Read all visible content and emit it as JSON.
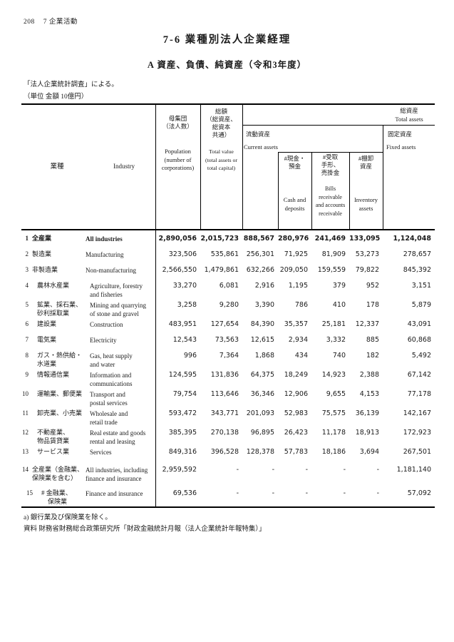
{
  "page": {
    "page_number": "208",
    "chapter": "7 企業活動",
    "title": "7-6 業種別法人企業経理",
    "subtitle": "A 資産、負債、純資産（令和3年度）",
    "note1": "「法人企業統計調査」による。",
    "note2": "（単位 金額 10億円）",
    "footnote": "a) 銀行業及び保険業を除く。",
    "source": "資料 財務省財務総合政策研究所「財政金融統計月報（法人企業統計年報特集）」"
  },
  "table": {
    "head": {
      "industry_ja": "業種",
      "industry_en": "Industry",
      "population_ja": "母集団\n（法人数）",
      "population_en": "Population\n(number of\ncorporations)",
      "total_ja": "総額\n（総資産、\n総資本\n共通）",
      "total_en": "Total value\n(total assets or\ntotal capital)",
      "total_assets_ja": "総資産",
      "total_assets_en": "Total assets",
      "current_ja": "流動資産",
      "current_en": "Current assets",
      "fixed_ja": "固定資産",
      "fixed_en": "Fixed assets",
      "cash_ja": "#現金・\n預金",
      "cash_en": "Cash and\ndeposits",
      "bills_ja": "#受取\n手形、\n売掛金",
      "bills_en": "Bills\nreceivable\nand accounts\nreceivable",
      "inventory_ja": "#棚卸\n資産",
      "inventory_en": "Inventory\nassets"
    },
    "rows": [
      {
        "num": "1",
        "ja": "全産業",
        "en": "All industries",
        "bold": true,
        "indent": false,
        "values": [
          "2,890,056",
          "2,015,723",
          "888,567",
          "280,976",
          "241,469",
          "133,095",
          "1,124,048"
        ]
      },
      {
        "num": "2",
        "ja": "製造業",
        "en": "Manufacturing",
        "bold": false,
        "indent": false,
        "values": [
          "323,506",
          "535,861",
          "256,301",
          "71,925",
          "81,909",
          "53,273",
          "278,657"
        ]
      },
      {
        "num": "3",
        "ja": "非製造業",
        "en": "Non-manufacturing",
        "bold": false,
        "indent": false,
        "values": [
          "2,566,550",
          "1,479,861",
          "632,266",
          "209,050",
          "159,559",
          "79,822",
          "845,392"
        ]
      },
      {
        "num": "4",
        "ja": "農林水産業",
        "en": "Agriculture, forestry\nand fisheries",
        "bold": false,
        "indent": true,
        "values": [
          "33,270",
          "6,081",
          "2,916",
          "1,195",
          "379",
          "952",
          "3,151"
        ]
      },
      {
        "num": "5",
        "ja": "鉱業、採石業、\n砂利採取業",
        "en": "Mining and quarrying\nof stone and gravel",
        "bold": false,
        "indent": true,
        "values": [
          "3,258",
          "9,280",
          "3,390",
          "786",
          "410",
          "178",
          "5,879"
        ]
      },
      {
        "num": "6",
        "ja": "建設業",
        "en": "Construction",
        "bold": false,
        "indent": true,
        "values": [
          "483,951",
          "127,654",
          "84,390",
          "35,357",
          "25,181",
          "12,337",
          "43,091"
        ]
      },
      {
        "num": "7",
        "ja": "電気業",
        "en": "Electricity",
        "bold": false,
        "indent": true,
        "values": [
          "12,543",
          "73,563",
          "12,615",
          "2,934",
          "3,332",
          "885",
          "60,868"
        ]
      },
      {
        "num": "8",
        "ja": "ガス・熱供給・\n水道業",
        "en": "Gas, heat supply\nand water",
        "bold": false,
        "indent": true,
        "values": [
          "996",
          "7,364",
          "1,868",
          "434",
          "740",
          "182",
          "5,492"
        ]
      },
      {
        "num": "9",
        "ja": "情報通信業",
        "en": "Information and\ncommunications",
        "bold": false,
        "indent": true,
        "values": [
          "124,595",
          "131,836",
          "64,375",
          "18,249",
          "14,923",
          "2,388",
          "67,142"
        ]
      },
      {
        "num": "10",
        "ja": "運輸業、郵便業",
        "en": "Transport and\npostal services",
        "bold": false,
        "indent": true,
        "values": [
          "79,754",
          "113,646",
          "36,346",
          "12,906",
          "9,655",
          "4,153",
          "77,178"
        ]
      },
      {
        "num": "11",
        "ja": "卸売業、小売業",
        "en": "Wholesale and\nretail trade",
        "bold": false,
        "indent": true,
        "values": [
          "593,472",
          "343,771",
          "201,093",
          "52,983",
          "75,575",
          "36,139",
          "142,167"
        ]
      },
      {
        "num": "12",
        "ja": "不動産業、\n物品賃貸業",
        "en": "Real estate and goods\nrental and leasing",
        "bold": false,
        "indent": true,
        "values": [
          "385,395",
          "270,138",
          "96,895",
          "26,423",
          "11,178",
          "18,913",
          "172,923"
        ]
      },
      {
        "num": "13",
        "ja": "サービス業",
        "en": "Services",
        "bold": false,
        "indent": true,
        "values": [
          "849,316",
          "396,528",
          "128,378",
          "57,783",
          "18,186",
          "3,694",
          "267,501"
        ]
      },
      {
        "num": "14",
        "ja": "全産業（金融業、\n保険業を含む）",
        "en": "All industries, including\nfinance and insurance",
        "bold": false,
        "indent": false,
        "values": [
          "2,959,592",
          "-",
          "-",
          "-",
          "-",
          "-",
          "1,181,140"
        ]
      },
      {
        "num": "15",
        "ja": "# 金融業、\n　保険業",
        "en": "Finance and insurance",
        "bold": false,
        "indent": false,
        "values": [
          "69,536",
          "-",
          "-",
          "-",
          "-",
          "-",
          "57,092"
        ]
      }
    ]
  }
}
